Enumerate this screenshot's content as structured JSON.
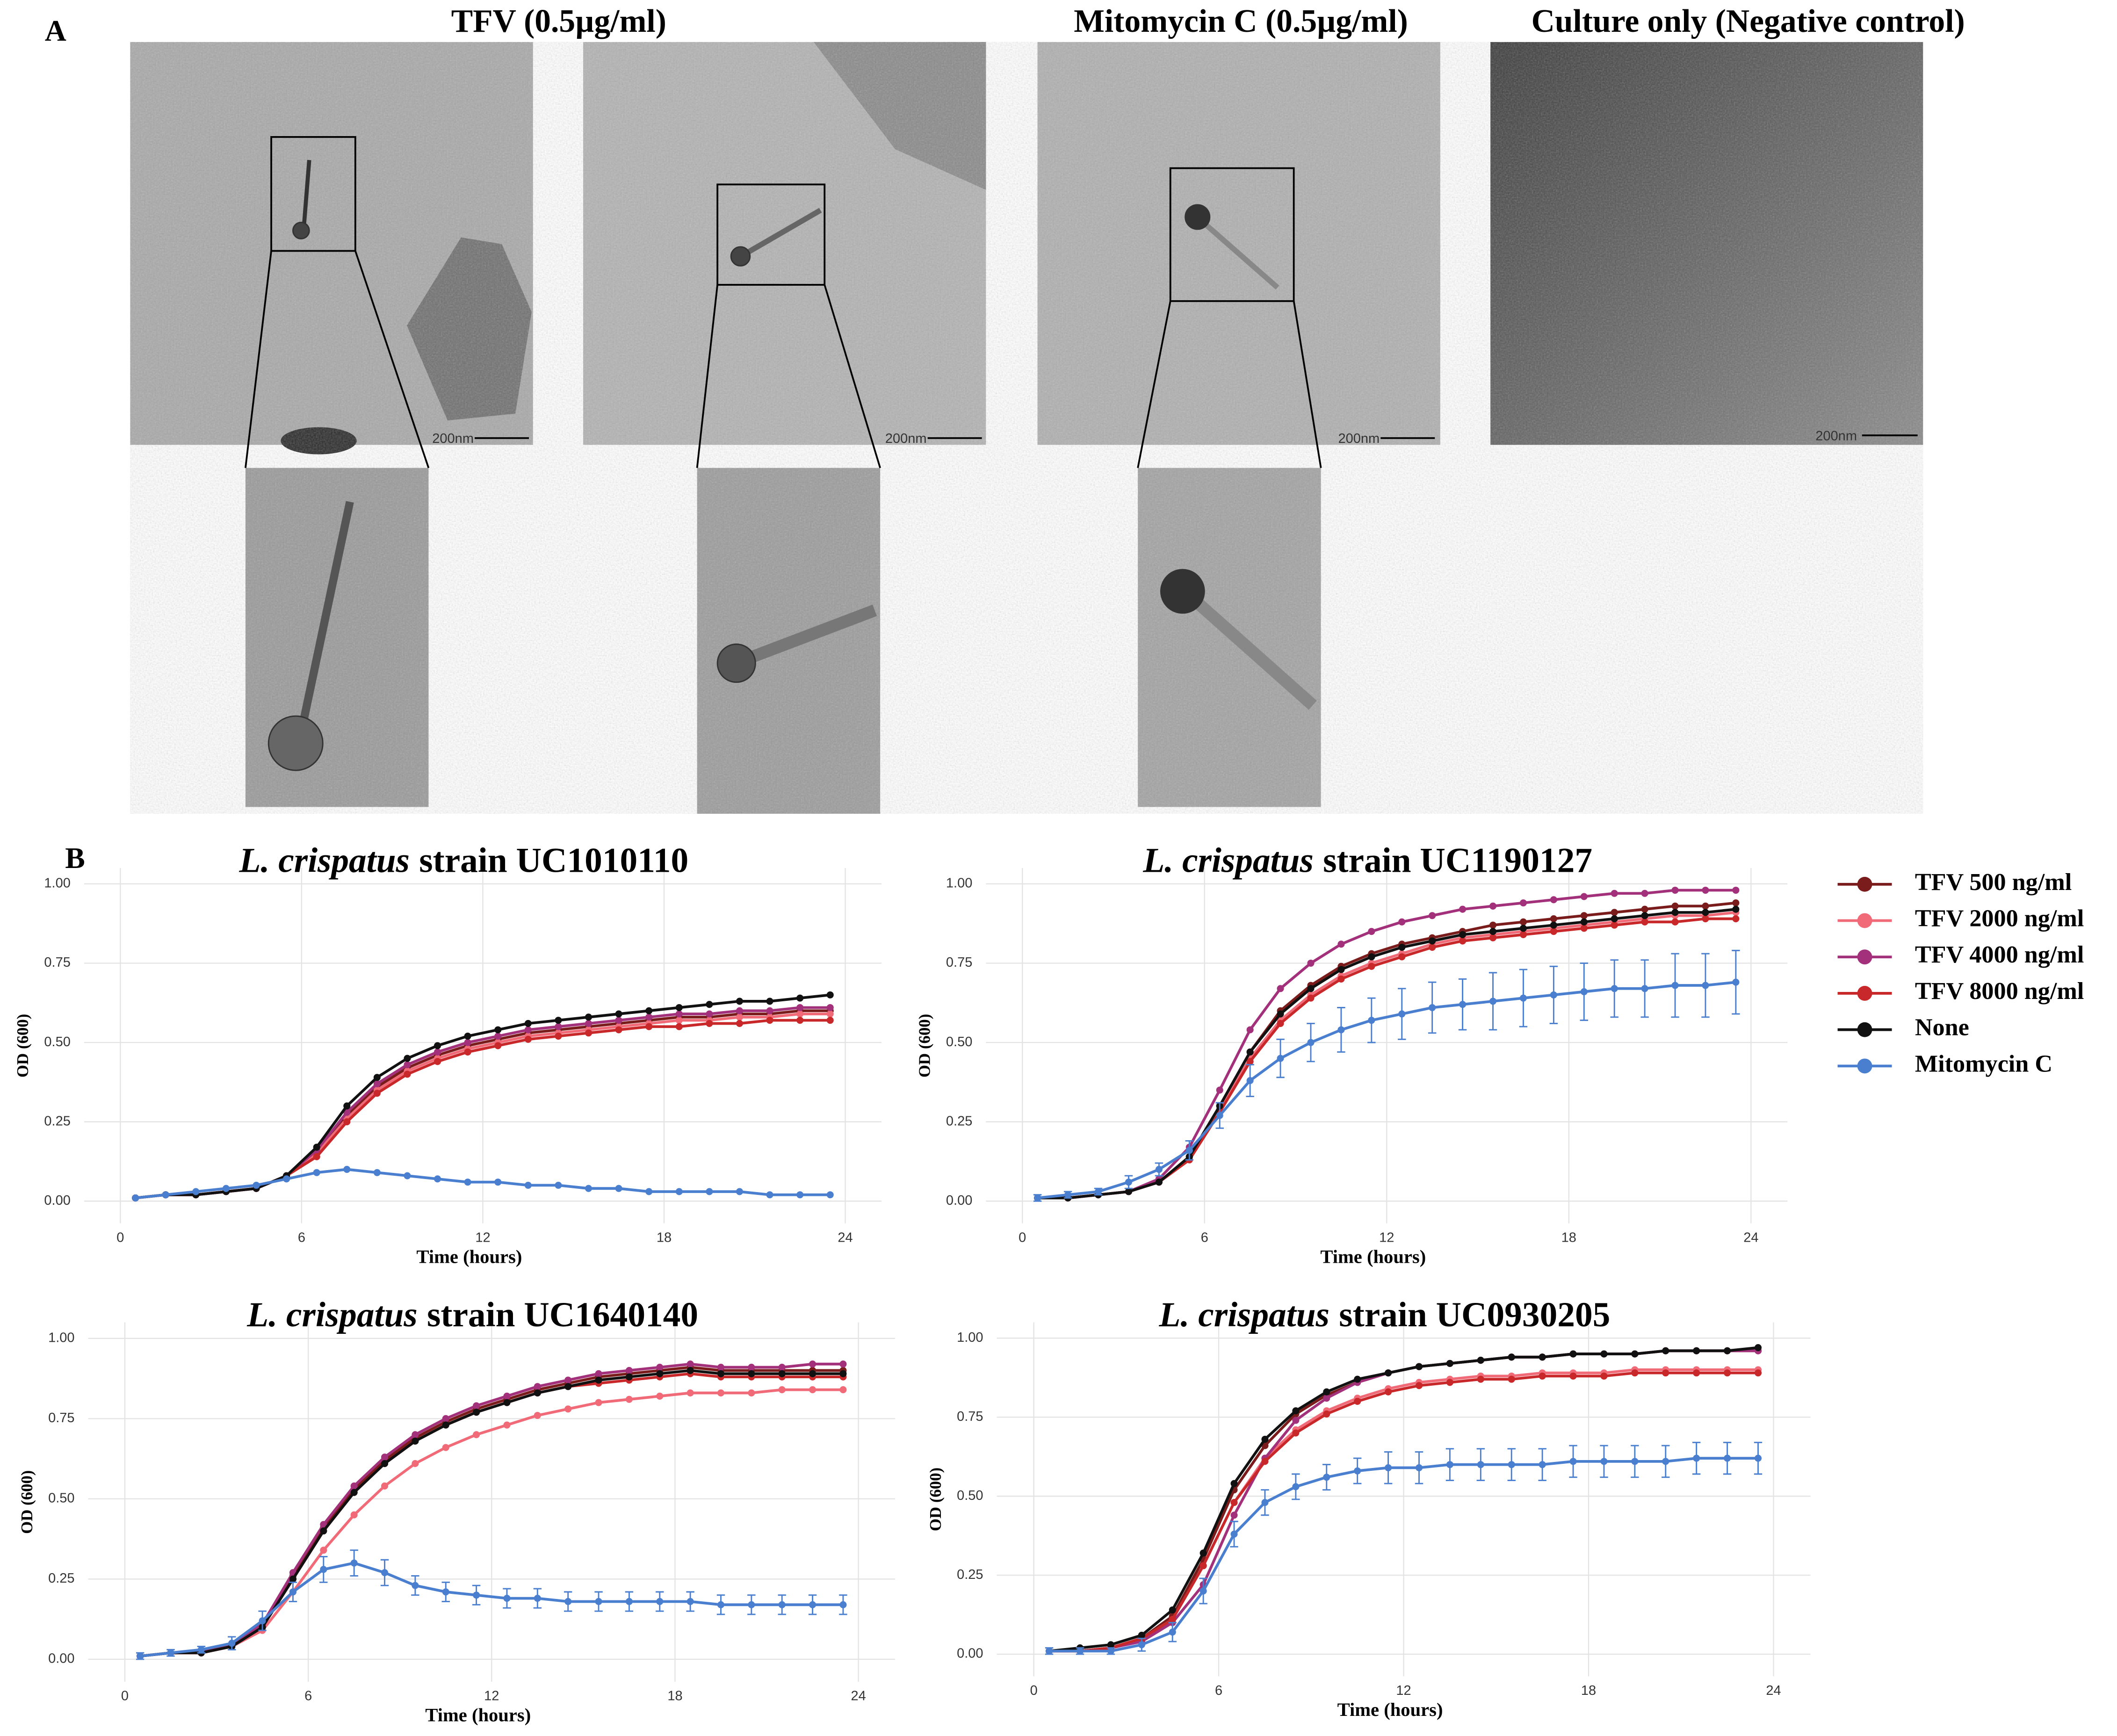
{
  "panel_a": {
    "label": "A",
    "titles": [
      "TFV (0.5µg/ml)",
      "Mitomycin C (0.5µg/ml)",
      "Culture only (Negative control)"
    ],
    "scale_bars": [
      "200nm",
      "200nm",
      "200nm",
      "200nm"
    ]
  },
  "panel_b_label": "B",
  "chart_data": [
    {
      "type": "line",
      "title": {
        "species": "L. crispatus",
        "strain": "strain UC1010110"
      },
      "x_label": "Time (hours)",
      "y_label": "OD (600)",
      "x": [
        0.5,
        1.5,
        2.5,
        3.5,
        4.5,
        5.5,
        6.5,
        7.5,
        8.5,
        9.5,
        10.5,
        11.5,
        12.5,
        13.5,
        14.5,
        15.5,
        16.5,
        17.5,
        18.5,
        19.5,
        20.5,
        21.5,
        22.5,
        23.5
      ],
      "xlim": [
        -1.2,
        25.2
      ],
      "xticks": [
        0,
        6,
        12,
        18,
        24
      ],
      "ylim": [
        -0.07,
        1.05
      ],
      "yticks": [
        {
          "value": 0,
          "label": "0.00"
        },
        {
          "value": 0.25,
          "label": "0.25"
        },
        {
          "value": 0.5,
          "label": "0.50"
        },
        {
          "value": 0.75,
          "label": "0.75"
        },
        {
          "value": 1,
          "label": "1.00"
        }
      ],
      "grid": true,
      "series": [
        {
          "name": "TFV 500 ng/ml",
          "color": "#7a1c1c",
          "values": [
            0.01,
            0.02,
            0.02,
            0.03,
            0.04,
            0.08,
            0.15,
            0.27,
            0.36,
            0.42,
            0.46,
            0.49,
            0.51,
            0.53,
            0.54,
            0.55,
            0.56,
            0.57,
            0.58,
            0.58,
            0.59,
            0.59,
            0.6,
            0.6
          ]
        },
        {
          "name": "TFV 2000 ng/ml",
          "color": "#f06a78",
          "values": [
            0.01,
            0.02,
            0.02,
            0.03,
            0.04,
            0.08,
            0.15,
            0.26,
            0.35,
            0.41,
            0.45,
            0.48,
            0.5,
            0.52,
            0.53,
            0.54,
            0.55,
            0.56,
            0.57,
            0.57,
            0.58,
            0.58,
            0.59,
            0.59
          ]
        },
        {
          "name": "TFV 4000 ng/ml",
          "color": "#a3307a",
          "values": [
            0.01,
            0.02,
            0.02,
            0.03,
            0.04,
            0.08,
            0.16,
            0.28,
            0.37,
            0.43,
            0.47,
            0.5,
            0.52,
            0.54,
            0.55,
            0.56,
            0.57,
            0.58,
            0.59,
            0.59,
            0.6,
            0.6,
            0.61,
            0.61
          ]
        },
        {
          "name": "TFV 8000 ng/ml",
          "color": "#c8282a",
          "values": [
            0.01,
            0.02,
            0.02,
            0.03,
            0.04,
            0.08,
            0.14,
            0.25,
            0.34,
            0.4,
            0.44,
            0.47,
            0.49,
            0.51,
            0.52,
            0.53,
            0.54,
            0.55,
            0.55,
            0.56,
            0.56,
            0.57,
            0.57,
            0.57
          ]
        },
        {
          "name": "None",
          "color": "#111111",
          "values": [
            0.01,
            0.02,
            0.02,
            0.03,
            0.04,
            0.08,
            0.17,
            0.3,
            0.39,
            0.45,
            0.49,
            0.52,
            0.54,
            0.56,
            0.57,
            0.58,
            0.59,
            0.6,
            0.61,
            0.62,
            0.63,
            0.63,
            0.64,
            0.65
          ]
        },
        {
          "name": "Mitomycin C",
          "color": "#4a7fd0",
          "values": [
            0.01,
            0.02,
            0.03,
            0.04,
            0.05,
            0.07,
            0.09,
            0.1,
            0.09,
            0.08,
            0.07,
            0.06,
            0.06,
            0.05,
            0.05,
            0.04,
            0.04,
            0.03,
            0.03,
            0.03,
            0.03,
            0.02,
            0.02,
            0.02
          ]
        }
      ]
    },
    {
      "type": "line",
      "title": {
        "species": "L. crispatus",
        "strain": "strain UC1190127"
      },
      "x_label": "Time (hours)",
      "y_label": "OD (600)",
      "x": [
        0.5,
        1.5,
        2.5,
        3.5,
        4.5,
        5.5,
        6.5,
        7.5,
        8.5,
        9.5,
        10.5,
        11.5,
        12.5,
        13.5,
        14.5,
        15.5,
        16.5,
        17.5,
        18.5,
        19.5,
        20.5,
        21.5,
        22.5,
        23.5
      ],
      "xlim": [
        -1.2,
        25.2
      ],
      "xticks": [
        0,
        6,
        12,
        18,
        24
      ],
      "ylim": [
        -0.07,
        1.05
      ],
      "yticks": [
        {
          "value": 0,
          "label": "0.00"
        },
        {
          "value": 0.25,
          "label": "0.25"
        },
        {
          "value": 0.5,
          "label": "0.50"
        },
        {
          "value": 0.75,
          "label": "0.75"
        },
        {
          "value": 1,
          "label": "1.00"
        }
      ],
      "grid": true,
      "legend": "right",
      "series": [
        {
          "name": "TFV 500 ng/ml",
          "color": "#7a1c1c",
          "values": [
            0.01,
            0.01,
            0.02,
            0.03,
            0.06,
            0.14,
            0.3,
            0.47,
            0.6,
            0.68,
            0.74,
            0.78,
            0.81,
            0.83,
            0.85,
            0.87,
            0.88,
            0.89,
            0.9,
            0.91,
            0.92,
            0.93,
            0.93,
            0.94
          ]
        },
        {
          "name": "TFV 2000 ng/ml",
          "color": "#f06a78",
          "values": [
            0.01,
            0.01,
            0.02,
            0.03,
            0.06,
            0.14,
            0.29,
            0.45,
            0.57,
            0.65,
            0.71,
            0.75,
            0.78,
            0.81,
            0.83,
            0.84,
            0.85,
            0.86,
            0.87,
            0.88,
            0.89,
            0.9,
            0.9,
            0.91
          ]
        },
        {
          "name": "TFV 4000 ng/ml",
          "color": "#a3307a",
          "values": [
            0.01,
            0.01,
            0.02,
            0.03,
            0.07,
            0.17,
            0.35,
            0.54,
            0.67,
            0.75,
            0.81,
            0.85,
            0.88,
            0.9,
            0.92,
            0.93,
            0.94,
            0.95,
            0.96,
            0.97,
            0.97,
            0.98,
            0.98,
            0.98
          ]
        },
        {
          "name": "TFV 8000 ng/ml",
          "color": "#c8282a",
          "values": [
            0.01,
            0.01,
            0.02,
            0.03,
            0.06,
            0.13,
            0.28,
            0.44,
            0.56,
            0.64,
            0.7,
            0.74,
            0.77,
            0.8,
            0.82,
            0.83,
            0.84,
            0.85,
            0.86,
            0.87,
            0.88,
            0.88,
            0.89,
            0.89
          ]
        },
        {
          "name": "None",
          "color": "#111111",
          "values": [
            0.01,
            0.01,
            0.02,
            0.03,
            0.06,
            0.14,
            0.3,
            0.47,
            0.59,
            0.67,
            0.73,
            0.77,
            0.8,
            0.82,
            0.84,
            0.85,
            0.86,
            0.87,
            0.88,
            0.89,
            0.9,
            0.91,
            0.91,
            0.92
          ]
        },
        {
          "name": "Mitomycin C",
          "color": "#4a7fd0",
          "values": [
            0.01,
            0.02,
            0.03,
            0.06,
            0.1,
            0.16,
            0.27,
            0.38,
            0.45,
            0.5,
            0.54,
            0.57,
            0.59,
            0.61,
            0.62,
            0.63,
            0.64,
            0.65,
            0.66,
            0.67,
            0.67,
            0.68,
            0.68,
            0.69
          ],
          "errors": [
            0.01,
            0.01,
            0.01,
            0.02,
            0.02,
            0.03,
            0.04,
            0.05,
            0.06,
            0.06,
            0.07,
            0.07,
            0.08,
            0.08,
            0.08,
            0.09,
            0.09,
            0.09,
            0.09,
            0.09,
            0.09,
            0.1,
            0.1,
            0.1
          ]
        }
      ]
    },
    {
      "type": "line",
      "title": {
        "species": "L. crispatus",
        "strain": "strain UC1640140"
      },
      "x_label": "Time (hours)",
      "y_label": "OD (600)",
      "x": [
        0.5,
        1.5,
        2.5,
        3.5,
        4.5,
        5.5,
        6.5,
        7.5,
        8.5,
        9.5,
        10.5,
        11.5,
        12.5,
        13.5,
        14.5,
        15.5,
        16.5,
        17.5,
        18.5,
        19.5,
        20.5,
        21.5,
        22.5,
        23.5
      ],
      "xlim": [
        -1.2,
        25.2
      ],
      "xticks": [
        0,
        6,
        12,
        18,
        24
      ],
      "ylim": [
        -0.07,
        1.05
      ],
      "yticks": [
        {
          "value": 0,
          "label": "0.00"
        },
        {
          "value": 0.25,
          "label": "0.25"
        },
        {
          "value": 0.5,
          "label": "0.50"
        },
        {
          "value": 0.75,
          "label": "0.75"
        },
        {
          "value": 1,
          "label": "1.00"
        }
      ],
      "grid": true,
      "series": [
        {
          "name": "TFV 500 ng/ml",
          "color": "#7a1c1c",
          "values": [
            0.01,
            0.02,
            0.02,
            0.04,
            0.1,
            0.26,
            0.41,
            0.53,
            0.62,
            0.69,
            0.74,
            0.78,
            0.81,
            0.84,
            0.86,
            0.88,
            0.89,
            0.9,
            0.91,
            0.9,
            0.9,
            0.9,
            0.9,
            0.9
          ]
        },
        {
          "name": "TFV 2000 ng/ml",
          "color": "#f06a78",
          "values": [
            0.01,
            0.02,
            0.02,
            0.04,
            0.09,
            0.21,
            0.34,
            0.45,
            0.54,
            0.61,
            0.66,
            0.7,
            0.73,
            0.76,
            0.78,
            0.8,
            0.81,
            0.82,
            0.83,
            0.83,
            0.83,
            0.84,
            0.84,
            0.84
          ]
        },
        {
          "name": "TFV 4000 ng/ml",
          "color": "#a3307a",
          "values": [
            0.01,
            0.02,
            0.02,
            0.05,
            0.11,
            0.27,
            0.42,
            0.54,
            0.63,
            0.7,
            0.75,
            0.79,
            0.82,
            0.85,
            0.87,
            0.89,
            0.9,
            0.91,
            0.92,
            0.91,
            0.91,
            0.91,
            0.92,
            0.92
          ]
        },
        {
          "name": "TFV 8000 ng/ml",
          "color": "#c8282a",
          "values": [
            0.01,
            0.02,
            0.02,
            0.04,
            0.1,
            0.25,
            0.4,
            0.52,
            0.61,
            0.68,
            0.73,
            0.77,
            0.8,
            0.83,
            0.85,
            0.86,
            0.87,
            0.88,
            0.89,
            0.88,
            0.88,
            0.88,
            0.88,
            0.88
          ]
        },
        {
          "name": "None",
          "color": "#111111",
          "values": [
            0.01,
            0.02,
            0.02,
            0.04,
            0.1,
            0.25,
            0.4,
            0.52,
            0.61,
            0.68,
            0.73,
            0.77,
            0.8,
            0.83,
            0.85,
            0.87,
            0.88,
            0.89,
            0.9,
            0.89,
            0.89,
            0.89,
            0.89,
            0.89
          ]
        },
        {
          "name": "Mitomycin C",
          "color": "#4a7fd0",
          "values": [
            0.01,
            0.02,
            0.03,
            0.05,
            0.12,
            0.21,
            0.28,
            0.3,
            0.27,
            0.23,
            0.21,
            0.2,
            0.19,
            0.19,
            0.18,
            0.18,
            0.18,
            0.18,
            0.18,
            0.17,
            0.17,
            0.17,
            0.17,
            0.17
          ],
          "errors": [
            0.01,
            0.01,
            0.01,
            0.02,
            0.03,
            0.03,
            0.04,
            0.04,
            0.04,
            0.03,
            0.03,
            0.03,
            0.03,
            0.03,
            0.03,
            0.03,
            0.03,
            0.03,
            0.03,
            0.03,
            0.03,
            0.03,
            0.03,
            0.03
          ]
        }
      ]
    },
    {
      "type": "line",
      "title": {
        "species": "L. crispatus",
        "strain": "strain UC0930205"
      },
      "x_label": "Time (hours)",
      "y_label": "OD (600)",
      "x": [
        0.5,
        1.5,
        2.5,
        3.5,
        4.5,
        5.5,
        6.5,
        7.5,
        8.5,
        9.5,
        10.5,
        11.5,
        12.5,
        13.5,
        14.5,
        15.5,
        16.5,
        17.5,
        18.5,
        19.5,
        20.5,
        21.5,
        22.5,
        23.5
      ],
      "xlim": [
        -1.2,
        25.2
      ],
      "xticks": [
        0,
        6,
        12,
        18,
        24
      ],
      "ylim": [
        -0.07,
        1.05
      ],
      "yticks": [
        {
          "value": 0,
          "label": "0.00"
        },
        {
          "value": 0.25,
          "label": "0.25"
        },
        {
          "value": 0.5,
          "label": "0.50"
        },
        {
          "value": 0.75,
          "label": "0.75"
        },
        {
          "value": 1,
          "label": "1.00"
        }
      ],
      "grid": true,
      "series": [
        {
          "name": "TFV 500 ng/ml",
          "color": "#7a1c1c",
          "values": [
            0.01,
            0.01,
            0.02,
            0.05,
            0.12,
            0.3,
            0.52,
            0.66,
            0.76,
            0.82,
            0.86,
            0.89,
            0.91,
            0.92,
            0.93,
            0.94,
            0.94,
            0.95,
            0.95,
            0.95,
            0.96,
            0.96,
            0.96,
            0.96
          ]
        },
        {
          "name": "TFV 2000 ng/ml",
          "color": "#f06a78",
          "values": [
            0.01,
            0.01,
            0.02,
            0.05,
            0.11,
            0.28,
            0.48,
            0.62,
            0.71,
            0.77,
            0.81,
            0.84,
            0.86,
            0.87,
            0.88,
            0.88,
            0.89,
            0.89,
            0.89,
            0.9,
            0.9,
            0.9,
            0.9,
            0.9
          ]
        },
        {
          "name": "TFV 4000 ng/ml",
          "color": "#a3307a",
          "values": [
            0.01,
            0.01,
            0.02,
            0.04,
            0.1,
            0.22,
            0.44,
            0.62,
            0.74,
            0.81,
            0.86,
            0.89,
            0.91,
            0.92,
            0.93,
            0.94,
            0.94,
            0.95,
            0.95,
            0.95,
            0.96,
            0.96,
            0.96,
            0.96
          ]
        },
        {
          "name": "TFV 8000 ng/ml",
          "color": "#c8282a",
          "values": [
            0.01,
            0.01,
            0.02,
            0.05,
            0.11,
            0.28,
            0.48,
            0.61,
            0.7,
            0.76,
            0.8,
            0.83,
            0.85,
            0.86,
            0.87,
            0.87,
            0.88,
            0.88,
            0.88,
            0.89,
            0.89,
            0.89,
            0.89,
            0.89
          ]
        },
        {
          "name": "None",
          "color": "#111111",
          "values": [
            0.01,
            0.02,
            0.03,
            0.06,
            0.14,
            0.32,
            0.54,
            0.68,
            0.77,
            0.83,
            0.87,
            0.89,
            0.91,
            0.92,
            0.93,
            0.94,
            0.94,
            0.95,
            0.95,
            0.95,
            0.96,
            0.96,
            0.96,
            0.97
          ]
        },
        {
          "name": "Mitomycin C",
          "color": "#4a7fd0",
          "values": [
            0.01,
            0.01,
            0.01,
            0.03,
            0.07,
            0.2,
            0.38,
            0.48,
            0.53,
            0.56,
            0.58,
            0.59,
            0.59,
            0.6,
            0.6,
            0.6,
            0.6,
            0.61,
            0.61,
            0.61,
            0.61,
            0.62,
            0.62,
            0.62
          ],
          "errors": [
            0.01,
            0.01,
            0.01,
            0.02,
            0.03,
            0.04,
            0.04,
            0.04,
            0.04,
            0.04,
            0.04,
            0.05,
            0.05,
            0.05,
            0.05,
            0.05,
            0.05,
            0.05,
            0.05,
            0.05,
            0.05,
            0.05,
            0.05,
            0.05
          ]
        }
      ]
    }
  ]
}
